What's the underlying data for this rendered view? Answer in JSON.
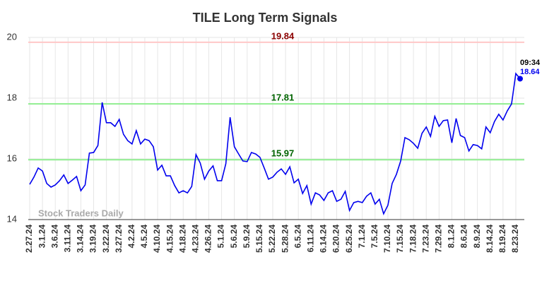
{
  "chart_data": {
    "type": "line",
    "title": "TILE Long Term Signals",
    "categories": [
      "2.27.24",
      null,
      null,
      "3.1.24",
      null,
      null,
      "3.6.24",
      null,
      null,
      "3.11.24",
      null,
      null,
      "3.14.24",
      null,
      null,
      "3.19.24",
      null,
      null,
      "3.22.24",
      null,
      null,
      "3.27.24",
      null,
      null,
      "4.2.24",
      null,
      null,
      "4.5.24",
      null,
      null,
      "4.10.24",
      null,
      null,
      "4.15.24",
      null,
      null,
      "4.18.24",
      null,
      null,
      "4.23.24",
      null,
      null,
      "4.26.24",
      null,
      null,
      "5.1.24",
      null,
      null,
      "5.6.24",
      null,
      null,
      "5.9.24",
      null,
      null,
      "5.15.24",
      null,
      null,
      "5.22.24",
      null,
      null,
      "5.28.24",
      null,
      null,
      "6.5.24",
      null,
      null,
      "6.11.24",
      null,
      null,
      "6.14.24",
      null,
      null,
      "6.20.24",
      null,
      null,
      "6.25.24",
      null,
      null,
      "7.1.24",
      null,
      null,
      "7.5.24",
      null,
      null,
      "7.10.24",
      null,
      null,
      "7.15.24",
      null,
      null,
      "7.18.24",
      null,
      null,
      "7.23.24",
      null,
      null,
      "7.29.24",
      null,
      null,
      "8.1.24",
      null,
      null,
      "8.6.24",
      null,
      null,
      "8.9.24",
      null,
      null,
      "8.14.24",
      null,
      null,
      "8.19.24",
      null,
      null,
      "8.23.24",
      null
    ],
    "series": [
      {
        "color": "#0000ee",
        "values": [
          15.16,
          15.4,
          15.7,
          15.6,
          15.19,
          15.07,
          15.14,
          15.28,
          15.47,
          15.19,
          15.3,
          15.42,
          14.95,
          15.14,
          16.19,
          16.21,
          16.44,
          17.86,
          17.19,
          17.19,
          17.07,
          17.3,
          16.81,
          16.6,
          16.49,
          16.93,
          16.49,
          16.65,
          16.6,
          16.4,
          15.63,
          15.79,
          15.44,
          15.44,
          15.12,
          14.88,
          14.95,
          14.88,
          15.09,
          16.14,
          15.86,
          15.33,
          15.6,
          15.77,
          15.28,
          15.28,
          15.84,
          17.37,
          16.4,
          16.16,
          15.93,
          15.91,
          16.21,
          16.16,
          16.05,
          15.7,
          15.33,
          15.4,
          15.56,
          15.67,
          15.49,
          15.74,
          15.21,
          15.33,
          14.86,
          15.12,
          14.51,
          14.88,
          14.81,
          14.63,
          14.88,
          14.95,
          14.6,
          14.67,
          14.93,
          14.3,
          14.56,
          14.6,
          14.56,
          14.77,
          14.88,
          14.51,
          14.67,
          14.19,
          14.47,
          15.19,
          15.49,
          15.93,
          16.7,
          16.63,
          16.51,
          16.35,
          16.84,
          17.05,
          16.74,
          17.4,
          17.07,
          17.26,
          17.28,
          16.53,
          17.33,
          16.77,
          16.7,
          16.26,
          16.47,
          16.44,
          16.33,
          17.05,
          16.86,
          17.23,
          17.47,
          17.28,
          17.58,
          17.81,
          18.81,
          18.64
        ]
      }
    ],
    "ylim": [
      14,
      20
    ],
    "yticks": [
      14,
      16,
      18,
      20
    ],
    "grid": true,
    "hlines": [
      {
        "value": 19.84,
        "color": "#ffc8c8",
        "label_color": "#8b0000"
      },
      {
        "value": 17.81,
        "color": "#90ee90",
        "label_color": "#006400"
      },
      {
        "value": 15.97,
        "color": "#90ee90",
        "label_color": "#006400"
      }
    ],
    "last_point": {
      "time": "09:34",
      "value": 18.64
    },
    "watermark": "Stock Traders Daily"
  }
}
